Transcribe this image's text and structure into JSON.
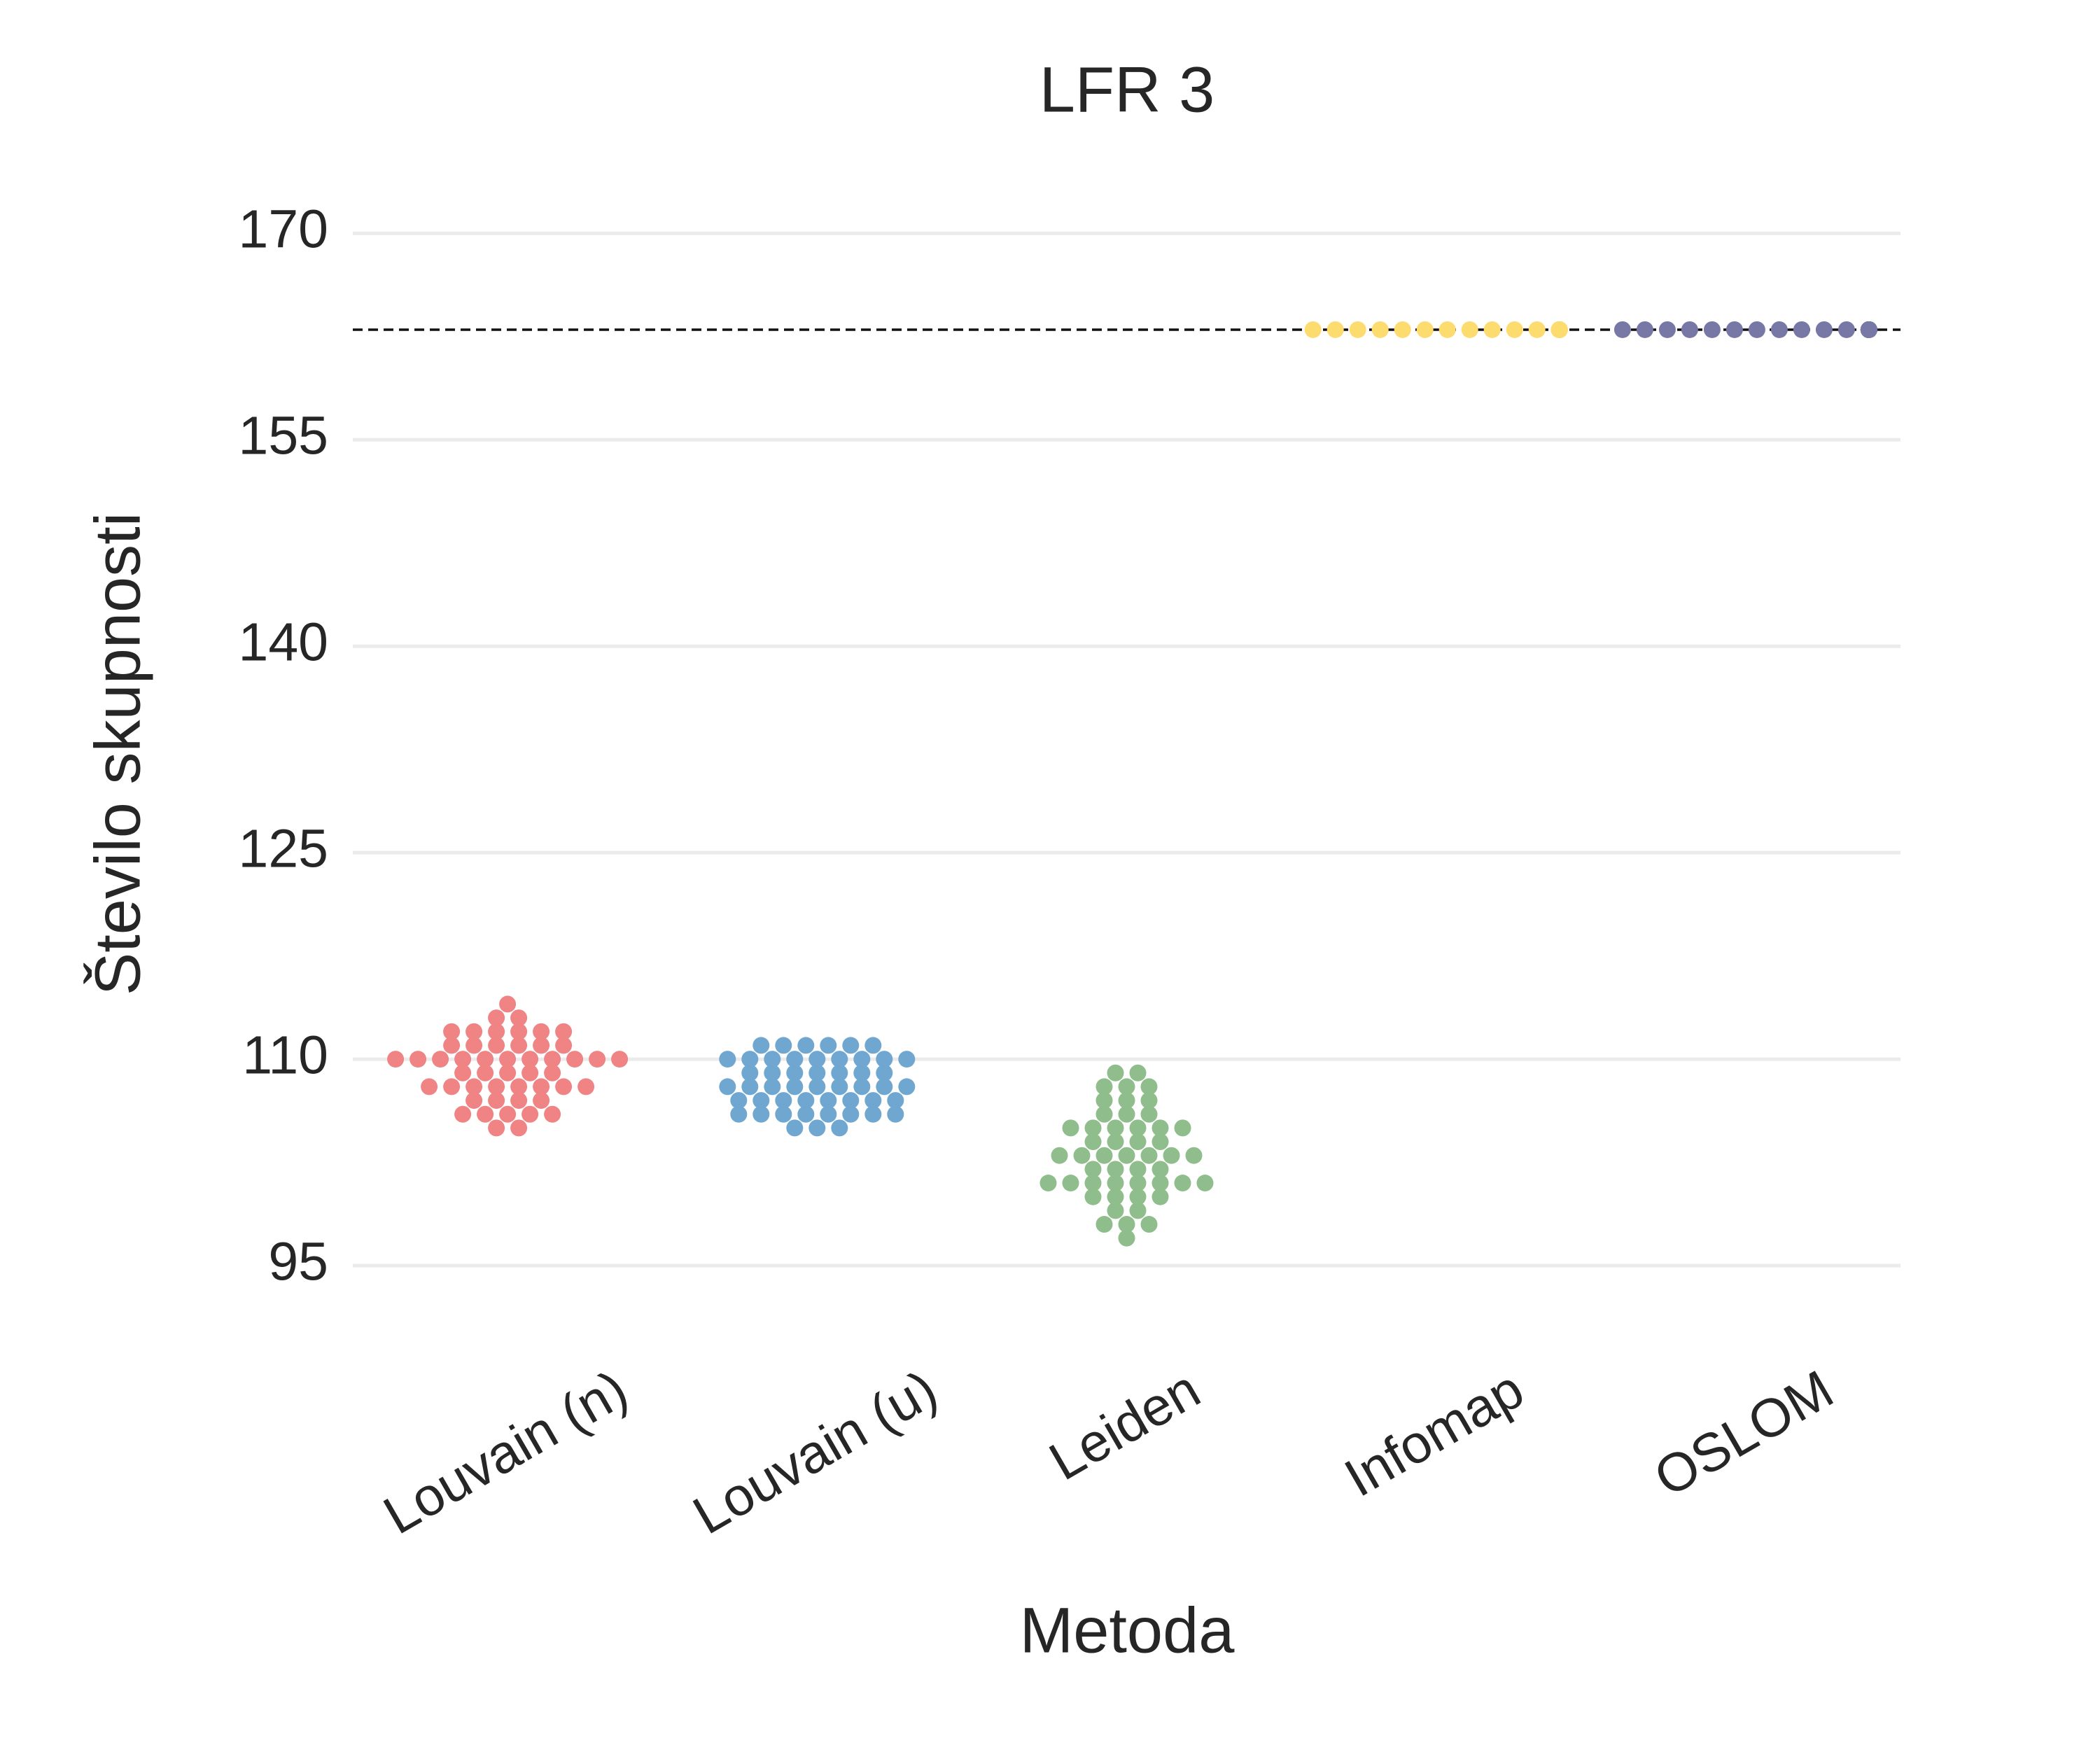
{
  "chart_data": {
    "type": "swarm",
    "title": "LFR 3",
    "x_label": "Metoda",
    "y_label": "Število skupnosti",
    "categories": [
      "Louvain (n)",
      "Louvain (u)",
      "Leiden",
      "Infomap",
      "OSLOM"
    ],
    "colors": [
      "#f08383",
      "#6fa7d1",
      "#8fbd8c",
      "#fddc6f",
      "#7778a6"
    ],
    "values": [
      [
        105,
        105,
        106,
        106,
        106,
        106,
        106,
        107,
        107,
        107,
        107,
        108,
        108,
        108,
        108,
        108,
        108,
        108,
        108,
        109,
        109,
        109,
        109,
        109,
        110,
        110,
        110,
        110,
        110,
        110,
        110,
        110,
        110,
        110,
        110,
        111,
        111,
        111,
        111,
        111,
        111,
        112,
        112,
        112,
        112,
        112,
        112,
        113,
        113,
        114
      ],
      [
        105,
        105,
        105,
        106,
        106,
        106,
        106,
        106,
        106,
        106,
        106,
        107,
        107,
        107,
        107,
        107,
        107,
        107,
        107,
        108,
        108,
        108,
        108,
        108,
        108,
        108,
        108,
        108,
        109,
        109,
        109,
        109,
        109,
        109,
        109,
        110,
        110,
        110,
        110,
        110,
        110,
        110,
        110,
        110,
        111,
        111,
        111,
        111,
        111,
        111
      ],
      [
        97,
        98,
        98,
        98,
        99,
        99,
        100,
        100,
        100,
        100,
        101,
        101,
        101,
        101,
        101,
        101,
        101,
        101,
        102,
        102,
        102,
        102,
        103,
        103,
        103,
        103,
        103,
        103,
        103,
        104,
        104,
        104,
        104,
        105,
        105,
        105,
        105,
        105,
        105,
        106,
        106,
        106,
        107,
        107,
        107,
        108,
        108,
        108,
        109,
        109
      ],
      [
        163,
        163,
        163,
        163,
        163,
        163,
        163,
        163,
        163,
        163,
        163,
        163,
        163,
        163,
        163,
        163,
        163,
        163,
        163,
        163,
        163,
        163,
        163,
        163,
        163,
        163,
        163,
        163,
        163,
        163,
        163,
        163,
        163,
        163,
        163,
        163,
        163,
        163,
        163,
        163,
        163,
        163,
        163,
        163,
        163,
        163,
        163,
        163,
        163,
        163
      ],
      [
        163,
        163,
        163,
        163,
        163,
        163,
        163,
        163,
        163,
        163,
        163,
        163,
        163,
        163,
        163,
        163,
        163,
        163,
        163,
        163,
        163,
        163,
        163,
        163,
        163,
        163,
        163,
        163,
        163,
        163,
        163,
        163,
        163,
        163,
        163,
        163,
        163,
        163,
        163,
        163,
        163,
        163,
        163,
        163,
        163,
        163,
        163,
        163,
        163,
        163
      ]
    ],
    "reference_line": 163,
    "ylim": [
      89,
      175
    ],
    "yticks": [
      95,
      110,
      125,
      140,
      155,
      170
    ],
    "grid": true
  }
}
